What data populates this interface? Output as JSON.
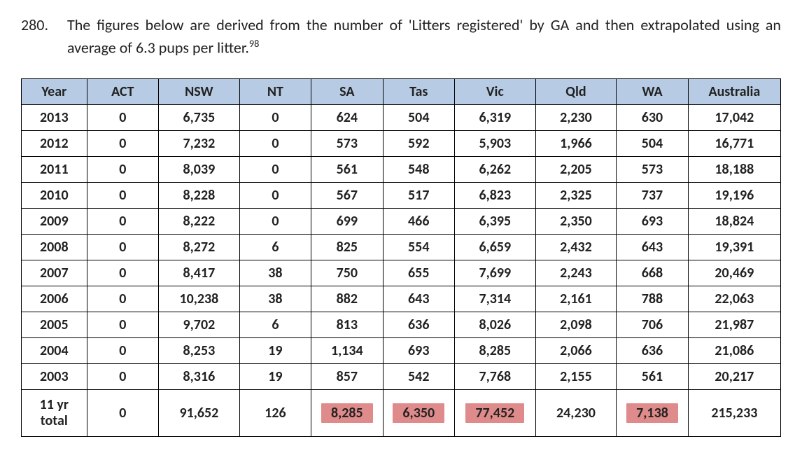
{
  "paragraph": {
    "number": "280.",
    "pre": "The figures below are derived from the number of 'Litters registered' by GA and then extrapolated using an average of 6.3 pups per litter.",
    "footnote": "98"
  },
  "table": {
    "header_bg": "#b7cce4",
    "highlight_bg": "#e08b8b",
    "border_color": "#000000",
    "columns": [
      "Year",
      "ACT",
      "NSW",
      "NT",
      "SA",
      "Tas",
      "Vic",
      "Qld",
      "WA",
      "Australia"
    ],
    "rows": [
      {
        "year": "2013",
        "cells": [
          "0",
          "6,735",
          "0",
          "624",
          "504",
          "6,319",
          "2,230",
          "630",
          "17,042"
        ]
      },
      {
        "year": "2012",
        "cells": [
          "0",
          "7,232",
          "0",
          "573",
          "592",
          "5,903",
          "1,966",
          "504",
          "16,771"
        ]
      },
      {
        "year": "2011",
        "cells": [
          "0",
          "8,039",
          "0",
          "561",
          "548",
          "6,262",
          "2,205",
          "573",
          "18,188"
        ]
      },
      {
        "year": "2010",
        "cells": [
          "0",
          "8,228",
          "0",
          "567",
          "517",
          "6,823",
          "2,325",
          "737",
          "19,196"
        ]
      },
      {
        "year": "2009",
        "cells": [
          "0",
          "8,222",
          "0",
          "699",
          "466",
          "6,395",
          "2,350",
          "693",
          "18,824"
        ]
      },
      {
        "year": "2008",
        "cells": [
          "0",
          "8,272",
          "6",
          "825",
          "554",
          "6,659",
          "2,432",
          "643",
          "19,391"
        ]
      },
      {
        "year": "2007",
        "cells": [
          "0",
          "8,417",
          "38",
          "750",
          "655",
          "7,699",
          "2,243",
          "668",
          "20,469"
        ]
      },
      {
        "year": "2006",
        "cells": [
          "0",
          "10,238",
          "38",
          "882",
          "643",
          "7,314",
          "2,161",
          "788",
          "22,063"
        ]
      },
      {
        "year": "2005",
        "cells": [
          "0",
          "9,702",
          "6",
          "813",
          "636",
          "8,026",
          "2,098",
          "706",
          "21,987"
        ]
      },
      {
        "year": "2004",
        "cells": [
          "0",
          "8,253",
          "19",
          "1,134",
          "693",
          "8,285",
          "2,066",
          "636",
          "21,086"
        ]
      },
      {
        "year": "2003",
        "cells": [
          "0",
          "8,316",
          "19",
          "857",
          "542",
          "7,768",
          "2,155",
          "561",
          "20,217"
        ]
      }
    ],
    "total": {
      "label_line1": "11 yr",
      "label_line2": "total",
      "cells": [
        "0",
        "91,652",
        "126",
        "8,285",
        "6,350",
        "77,452",
        "24,230",
        "7,138",
        "215,233"
      ],
      "highlight_idx": [
        3,
        4,
        5,
        7
      ]
    }
  }
}
